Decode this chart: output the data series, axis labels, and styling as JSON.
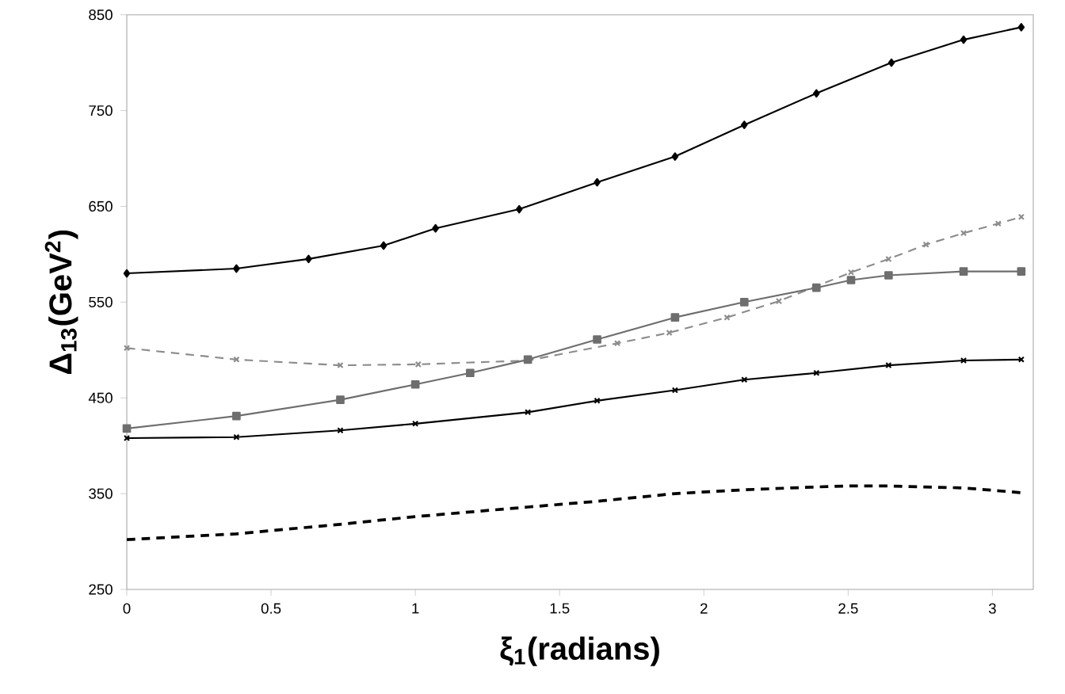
{
  "chart_data": {
    "type": "line",
    "xlabel": "ξ$_{1}$(radians)",
    "ylabel": "Δ$_{13}$(GeV$^{2}$)",
    "xlim": [
      0,
      3.1416
    ],
    "xticks": [
      0,
      0.5,
      1,
      1.5,
      2,
      2.5,
      3
    ],
    "ylim": [
      250,
      850
    ],
    "yticks": [
      250,
      350,
      450,
      550,
      650,
      750,
      850
    ],
    "grid": false,
    "series": [
      {
        "color": "#000000",
        "marker": "diamond",
        "line_style": "solid",
        "x": [
          0,
          0.38,
          0.63,
          0.89,
          1.07,
          1.36,
          1.63,
          1.9,
          2.14,
          2.39,
          2.65,
          2.9,
          3.1
        ],
        "values": [
          580,
          585,
          595,
          609,
          627,
          647,
          675,
          702,
          735,
          768,
          800,
          824,
          837
        ]
      },
      {
        "color": "#8c8c8c",
        "marker": "cross",
        "line_style": "dashed",
        "x": [
          0,
          0.38,
          0.74,
          1.01,
          1.39,
          1.7,
          1.88,
          2.08,
          2.26,
          2.51,
          2.64,
          2.77,
          2.9,
          3.02,
          3.1
        ],
        "values": [
          502,
          490,
          484,
          485,
          489,
          507,
          518,
          534,
          551,
          581,
          595,
          610,
          622,
          632,
          639
        ]
      },
      {
        "color": "#6e6e6e",
        "marker": "square",
        "line_style": "solid",
        "x": [
          0,
          0.38,
          0.74,
          1.0,
          1.19,
          1.39,
          1.63,
          1.9,
          2.14,
          2.39,
          2.51,
          2.64,
          2.9,
          3.1
        ],
        "values": [
          418,
          431,
          448,
          464,
          476,
          490,
          511,
          534,
          550,
          565,
          573,
          578,
          582,
          582
        ]
      },
      {
        "color": "#000000",
        "marker": "cross",
        "line_style": "solid",
        "x": [
          0,
          0.38,
          0.74,
          1.0,
          1.39,
          1.63,
          1.9,
          2.14,
          2.39,
          2.64,
          2.9,
          3.1
        ],
        "values": [
          408,
          409,
          416,
          423,
          435,
          447,
          458,
          469,
          476,
          484,
          489,
          490
        ]
      },
      {
        "color": "#000000",
        "marker": "none",
        "line_style": "dashed",
        "x": [
          0,
          0.38,
          0.74,
          1.0,
          1.39,
          1.63,
          1.9,
          2.14,
          2.39,
          2.51,
          2.64,
          2.9,
          3.1
        ],
        "values": [
          302,
          308,
          318,
          326,
          336,
          342,
          350,
          354,
          357,
          358,
          358,
          356,
          351
        ]
      }
    ]
  }
}
